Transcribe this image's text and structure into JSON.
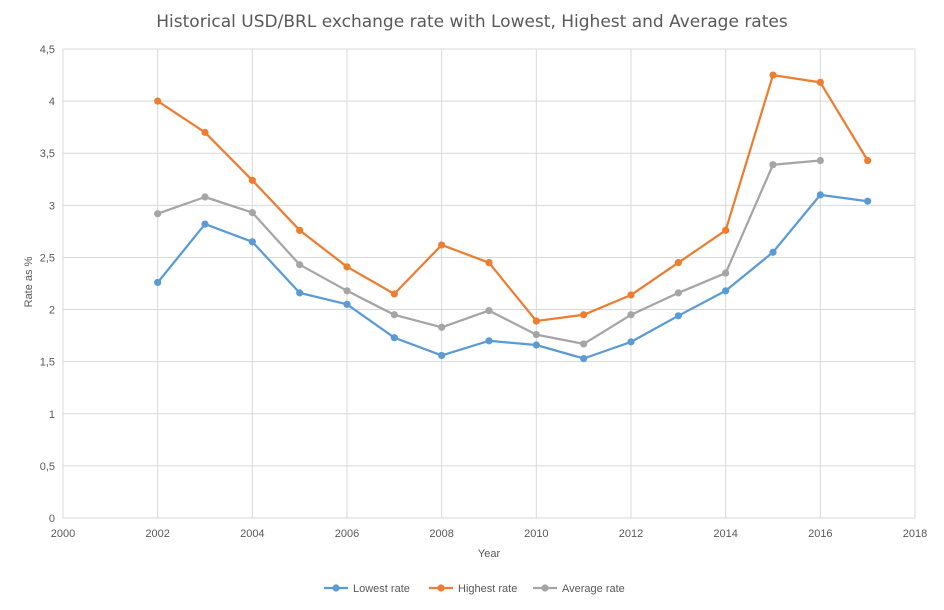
{
  "chart_data": {
    "type": "line",
    "title": "Historical USD/BRL exchange rate with Lowest, Highest and Average rates",
    "xlabel": "Year",
    "ylabel": "Rate as %",
    "xlim": [
      2000,
      2018
    ],
    "ylim": [
      0,
      4.5
    ],
    "x_ticks": [
      "2000",
      "2002",
      "2004",
      "2006",
      "2008",
      "2010",
      "2012",
      "2014",
      "2016",
      "2018"
    ],
    "y_ticks": [
      "0",
      "0,5",
      "1",
      "1,5",
      "2",
      "2,5",
      "3",
      "3,5",
      "4",
      "4,5"
    ],
    "grid": true,
    "legend_position": "bottom",
    "x": [
      2002,
      2003,
      2004,
      2005,
      2006,
      2007,
      2008,
      2009,
      2010,
      2011,
      2012,
      2013,
      2014,
      2015,
      2016,
      2017
    ],
    "series": [
      {
        "name": "Lowest rate",
        "color": "#5B9BD5",
        "values": [
          2.26,
          2.82,
          2.65,
          2.16,
          2.05,
          1.73,
          1.56,
          1.7,
          1.66,
          1.53,
          1.69,
          1.94,
          2.18,
          2.55,
          3.1,
          3.04
        ]
      },
      {
        "name": "Highest rate",
        "color": "#ED7D31",
        "values": [
          4.0,
          3.7,
          3.24,
          2.76,
          2.41,
          2.15,
          2.62,
          2.45,
          1.89,
          1.95,
          2.14,
          2.45,
          2.76,
          4.25,
          4.18,
          3.43
        ]
      },
      {
        "name": "Average rate",
        "color": "#A5A5A5",
        "values": [
          2.92,
          3.08,
          2.93,
          2.43,
          2.18,
          1.95,
          1.83,
          1.99,
          1.76,
          1.67,
          1.95,
          2.16,
          2.35,
          3.39,
          3.43,
          null
        ]
      }
    ]
  }
}
